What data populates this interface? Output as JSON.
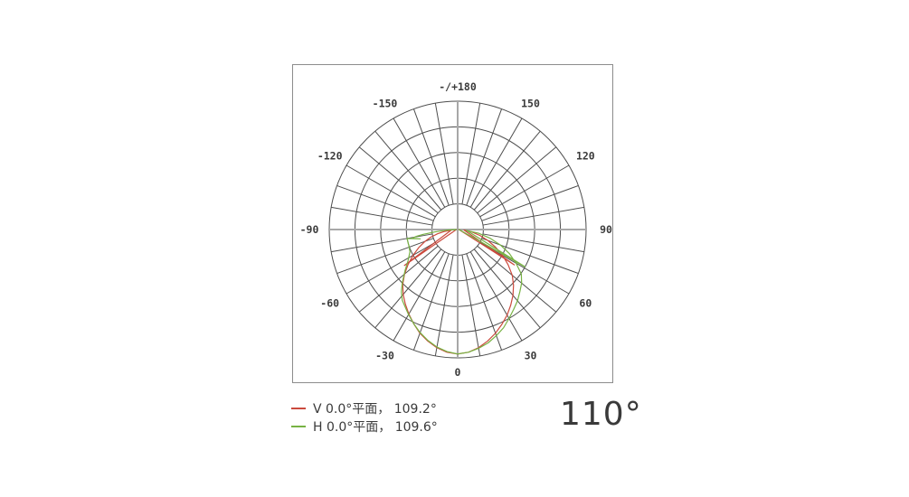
{
  "beam_angle_summary": "110°",
  "legend": {
    "items": [
      {
        "label": "V 0.0°平面， 109.2°",
        "color": "#cb4a3d"
      },
      {
        "label": "H 0.0°平面， 109.6°",
        "color": "#77b243"
      }
    ]
  },
  "chart": {
    "colors": {
      "grid_line": "#4d4d4d",
      "axis_line": "#a8a8a8",
      "box_border": "#8c8c8c",
      "tick_label": "#3b3b3b",
      "background": "#ffffff",
      "v_plane": "#cb4a3d",
      "h_plane": "#77b243"
    }
  },
  "chart_data": {
    "type": "line",
    "plot": "polar",
    "title": "",
    "angle_unit": "deg",
    "zero_direction": "down",
    "radius_unit": "relative_intensity_fraction_of_max",
    "grid": true,
    "rings_percent": [
      20,
      40,
      60,
      80,
      100
    ],
    "spoke_step_deg": 10,
    "angle_tick_labels": [
      {
        "deg": 0,
        "label": "0"
      },
      {
        "deg": 30,
        "label": "30"
      },
      {
        "deg": 60,
        "label": "60"
      },
      {
        "deg": 90,
        "label": "90"
      },
      {
        "deg": 120,
        "label": "120"
      },
      {
        "deg": 150,
        "label": "150"
      },
      {
        "deg": 180,
        "label": "-/+180"
      },
      {
        "deg": -150,
        "label": "-150"
      },
      {
        "deg": -120,
        "label": "-120"
      },
      {
        "deg": -90,
        "label": "-90"
      },
      {
        "deg": -60,
        "label": "-60"
      },
      {
        "deg": -30,
        "label": "-30"
      }
    ],
    "series": [
      {
        "name": "V 0.0°平面",
        "beam_angle_deg": 109.2,
        "color": "#cb4a3d",
        "points": [
          [
            -90,
            0.01
          ],
          [
            -56,
            0.5
          ],
          [
            -85,
            0.05
          ],
          [
            -82,
            0.1
          ],
          [
            -78,
            0.16
          ],
          [
            -74,
            0.22
          ],
          [
            -70,
            0.27
          ],
          [
            -65,
            0.335
          ],
          [
            -60,
            0.4
          ],
          [
            -55,
            0.47
          ],
          [
            -50,
            0.54
          ],
          [
            -45,
            0.605
          ],
          [
            -40,
            0.66
          ],
          [
            -35,
            0.71
          ],
          [
            -30,
            0.76
          ],
          [
            -25,
            0.81
          ],
          [
            -20,
            0.86
          ],
          [
            -15,
            0.9
          ],
          [
            -10,
            0.935
          ],
          [
            -5,
            0.96
          ],
          [
            0,
            0.97
          ],
          [
            5,
            0.96
          ],
          [
            10,
            0.935
          ],
          [
            15,
            0.9
          ],
          [
            20,
            0.86
          ],
          [
            25,
            0.815
          ],
          [
            30,
            0.77
          ],
          [
            35,
            0.72
          ],
          [
            40,
            0.67
          ],
          [
            45,
            0.615
          ],
          [
            50,
            0.555
          ],
          [
            55,
            0.48
          ],
          [
            60,
            0.405
          ],
          [
            65,
            0.325
          ],
          [
            70,
            0.25
          ],
          [
            75,
            0.18
          ],
          [
            80,
            0.115
          ],
          [
            85,
            0.05
          ],
          [
            58,
            0.52
          ],
          [
            90,
            0.01
          ]
        ]
      },
      {
        "name": "H 0.0°平面",
        "beam_angle_deg": 109.6,
        "color": "#77b243",
        "points": [
          [
            -90,
            0.01
          ],
          [
            -87,
            0.08
          ],
          [
            -84,
            0.18
          ],
          [
            -82,
            0.27
          ],
          [
            -80.5,
            0.33
          ],
          [
            -79,
            0.36
          ],
          [
            -76,
            0.3
          ],
          [
            -80,
            0.4
          ],
          [
            -72,
            0.4
          ],
          [
            -65,
            0.41
          ],
          [
            -58,
            0.455
          ],
          [
            -52,
            0.52
          ],
          [
            -46,
            0.6
          ],
          [
            -42,
            0.655
          ],
          [
            -38,
            0.7
          ],
          [
            -34,
            0.73
          ],
          [
            -30,
            0.765
          ],
          [
            -25,
            0.81
          ],
          [
            -20,
            0.855
          ],
          [
            -15,
            0.895
          ],
          [
            -10,
            0.93
          ],
          [
            -5,
            0.955
          ],
          [
            0,
            0.97
          ],
          [
            5,
            0.96
          ],
          [
            10,
            0.94
          ],
          [
            15,
            0.915
          ],
          [
            20,
            0.88
          ],
          [
            25,
            0.845
          ],
          [
            30,
            0.8
          ],
          [
            35,
            0.76
          ],
          [
            40,
            0.725
          ],
          [
            45,
            0.685
          ],
          [
            50,
            0.65
          ],
          [
            55,
            0.605
          ],
          [
            60,
            0.525
          ],
          [
            65,
            0.445
          ],
          [
            70,
            0.355
          ],
          [
            75,
            0.26
          ],
          [
            80,
            0.165
          ],
          [
            84,
            0.07
          ],
          [
            61,
            0.6
          ],
          [
            90,
            0.01
          ]
        ]
      }
    ]
  }
}
